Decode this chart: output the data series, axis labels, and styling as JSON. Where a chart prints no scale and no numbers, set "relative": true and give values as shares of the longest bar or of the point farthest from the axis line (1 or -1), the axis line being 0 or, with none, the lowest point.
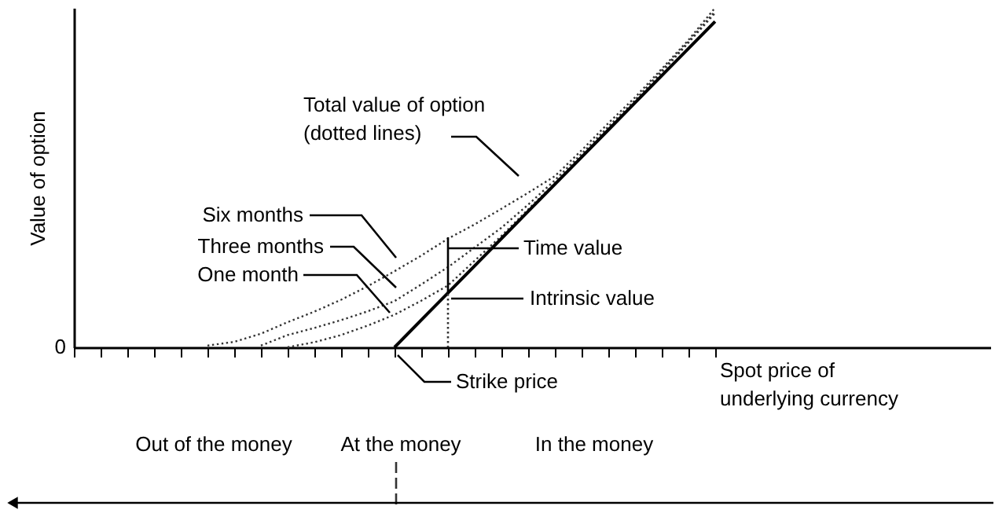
{
  "chart_data": {
    "type": "line",
    "relative": true,
    "ylabel": "Value of option",
    "categories": [
      null,
      null,
      null,
      null,
      null,
      null,
      null,
      null,
      null,
      null,
      null,
      null,
      null,
      null,
      null,
      null,
      null,
      null,
      null,
      null,
      null,
      null,
      null,
      null,
      null
    ],
    "series": [
      {
        "color": "#333333",
        "line_style": "dotted",
        "values": [
          null,
          null,
          null,
          null,
          null,
          0.005,
          0.016,
          0.04,
          0.074,
          0.105,
          0.14,
          0.18,
          0.224,
          0.27,
          0.32,
          0.362,
          0.408,
          0.455,
          0.504,
          0.58,
          0.66,
          0.736,
          0.82,
          0.905,
          1
        ]
      },
      {
        "color": "#333333",
        "line_style": "dotted",
        "values": [
          null,
          null,
          null,
          null,
          null,
          null,
          null,
          0.005,
          0.036,
          0.057,
          0.08,
          0.106,
          0.136,
          0.185,
          0.236,
          0.294,
          0.352,
          0.42,
          0.492,
          0.57,
          0.65,
          0.728,
          0.815,
          0.9,
          0.99
        ]
      },
      {
        "color": "#333333",
        "line_style": "dotted",
        "values": [
          null,
          null,
          null,
          null,
          null,
          null,
          null,
          null,
          0,
          0.015,
          0.036,
          0.064,
          0.096,
          0.137,
          0.182,
          0.255,
          0.328,
          0.406,
          0.484,
          0.564,
          0.644,
          0.724,
          0.81,
          0.897,
          0.985
        ]
      },
      {
        "color": "#000000",
        "line_style": "solid",
        "values": [
          null,
          null,
          null,
          null,
          null,
          null,
          null,
          null,
          null,
          null,
          null,
          null,
          0,
          0.08,
          0.16,
          0.24,
          0.32,
          0.4,
          0.48,
          0.56,
          0.64,
          0.72,
          0.8,
          0.88,
          0.96
        ]
      }
    ],
    "annotations": [
      "Total value of option\n(dotted lines)",
      "Six months",
      "Three months",
      "One month",
      "Time value",
      "Intrinsic value",
      "Strike price",
      "Spot price of\nunderlying currency",
      "Out of the money",
      "At the money",
      "In the money",
      "0"
    ]
  }
}
